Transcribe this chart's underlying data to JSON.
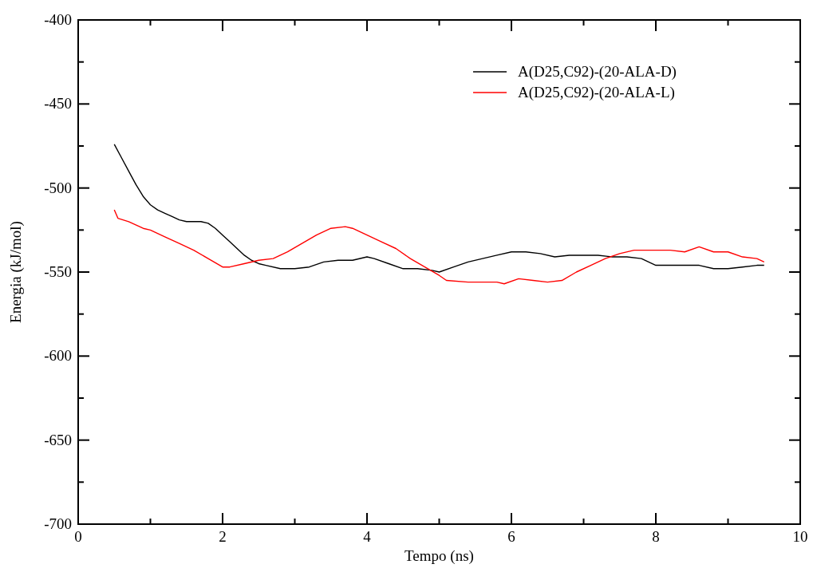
{
  "chart_data": {
    "type": "line",
    "xlabel": "Tempo (ns)",
    "ylabel": "Energia (kJ/mol)",
    "xlim": [
      0,
      10
    ],
    "ylim": [
      -700,
      -400
    ],
    "xticks": [
      0,
      {
        "value": 1,
        "label": null
      },
      2,
      {
        "value": 3,
        "label": null
      },
      4,
      {
        "value": 5,
        "label": null
      },
      6,
      {
        "value": 7,
        "label": null
      },
      8,
      {
        "value": 9,
        "label": null
      },
      10
    ],
    "yticks": [
      -700,
      {
        "value": -675,
        "label": null
      },
      -650,
      {
        "value": -625,
        "label": null
      },
      -600,
      {
        "value": -575,
        "label": null
      },
      -550,
      {
        "value": -525,
        "label": null
      },
      -500,
      {
        "value": -475,
        "label": null
      },
      -450,
      {
        "value": -425,
        "label": null
      },
      -400
    ],
    "legend": "top right",
    "grid": false,
    "series": [
      {
        "name": "A(D25,C92)-(20-ALA-D)",
        "color": "#000000",
        "x": [
          0.5,
          0.6,
          0.7,
          0.8,
          0.9,
          1.0,
          1.1,
          1.2,
          1.3,
          1.4,
          1.5,
          1.6,
          1.7,
          1.8,
          1.9,
          2.0,
          2.1,
          2.2,
          2.3,
          2.4,
          2.5,
          2.6,
          2.8,
          3.0,
          3.2,
          3.4,
          3.6,
          3.8,
          4.0,
          4.1,
          4.3,
          4.5,
          4.7,
          4.9,
          5.0,
          5.2,
          5.4,
          5.6,
          5.8,
          6.0,
          6.2,
          6.4,
          6.6,
          6.8,
          7.0,
          7.2,
          7.4,
          7.6,
          7.8,
          8.0,
          8.2,
          8.4,
          8.6,
          8.8,
          9.0,
          9.2,
          9.4,
          9.5
        ],
        "values": [
          -474,
          -482,
          -490,
          -498,
          -505,
          -510,
          -513,
          -515,
          -517,
          -519,
          -520,
          -520,
          -520,
          -521,
          -524,
          -528,
          -532,
          -536,
          -540,
          -543,
          -545,
          -546,
          -548,
          -548,
          -547,
          -544,
          -543,
          -543,
          -541,
          -542,
          -545,
          -548,
          -548,
          -549,
          -550,
          -547,
          -544,
          -542,
          -540,
          -538,
          -538,
          -539,
          -541,
          -540,
          -540,
          -540,
          -541,
          -541,
          -542,
          -546,
          -546,
          -546,
          -546,
          -548,
          -548,
          -547,
          -546,
          -546
        ]
      },
      {
        "name": "A(D25,C92)-(20-ALA-L)",
        "color": "#ff0000",
        "x": [
          0.5,
          0.55,
          0.7,
          0.9,
          1.0,
          1.2,
          1.4,
          1.6,
          1.8,
          2.0,
          2.1,
          2.3,
          2.5,
          2.7,
          2.9,
          3.1,
          3.3,
          3.5,
          3.7,
          3.8,
          4.0,
          4.2,
          4.4,
          4.6,
          4.8,
          5.0,
          5.1,
          5.4,
          5.8,
          5.9,
          6.1,
          6.3,
          6.5,
          6.7,
          6.9,
          7.1,
          7.3,
          7.5,
          7.7,
          8.0,
          8.2,
          8.4,
          8.6,
          8.8,
          9.0,
          9.2,
          9.4,
          9.5
        ],
        "values": [
          -513,
          -518,
          -520,
          -524,
          -525,
          -529,
          -533,
          -537,
          -542,
          -547,
          -547,
          -545,
          -543,
          -542,
          -538,
          -533,
          -528,
          -524,
          -523,
          -524,
          -528,
          -532,
          -536,
          -542,
          -547,
          -552,
          -555,
          -556,
          -556,
          -557,
          -554,
          -555,
          -556,
          -555,
          -550,
          -546,
          -542,
          -539,
          -537,
          -537,
          -537,
          -538,
          -535,
          -538,
          -538,
          -541,
          -542,
          -544
        ]
      }
    ]
  }
}
